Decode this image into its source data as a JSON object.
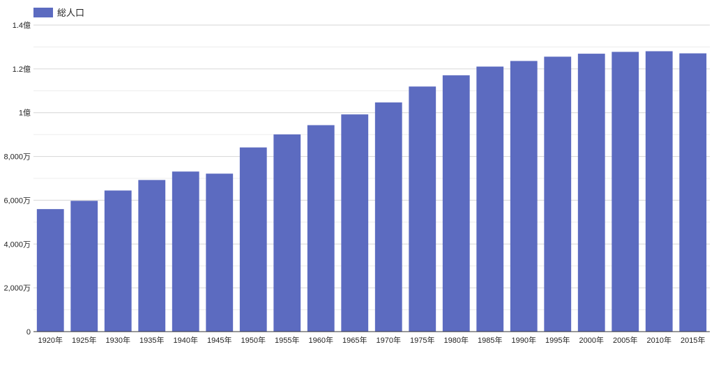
{
  "chart_data": {
    "type": "bar",
    "title": "",
    "xlabel": "",
    "ylabel": "",
    "legend": {
      "position": "top-left",
      "entries": [
        "総人口"
      ]
    },
    "grid": true,
    "categories": [
      "1920年",
      "1925年",
      "1930年",
      "1935年",
      "1940年",
      "1945年",
      "1950年",
      "1955年",
      "1960年",
      "1965年",
      "1970年",
      "1975年",
      "1980年",
      "1985年",
      "1990年",
      "1995年",
      "2000年",
      "2005年",
      "2010年",
      "2015年"
    ],
    "series": [
      {
        "name": "総人口",
        "color": "#5c6bc0",
        "values": [
          55960000,
          59740000,
          64450000,
          69250000,
          73110000,
          72150000,
          84120000,
          90080000,
          94300000,
          99210000,
          104670000,
          111940000,
          117060000,
          121050000,
          123610000,
          125570000,
          126930000,
          127770000,
          128060000,
          127090000
        ]
      }
    ],
    "ylim": [
      0,
      140000000
    ],
    "yticks": [
      {
        "value": 0,
        "label": "0"
      },
      {
        "value": 20000000,
        "label": "2,000万"
      },
      {
        "value": 40000000,
        "label": "4,000万"
      },
      {
        "value": 60000000,
        "label": "6,000万"
      },
      {
        "value": 80000000,
        "label": "8,000万"
      },
      {
        "value": 100000000,
        "label": "1億"
      },
      {
        "value": 120000000,
        "label": "1.2億"
      },
      {
        "value": 140000000,
        "label": "1.4億"
      }
    ]
  }
}
